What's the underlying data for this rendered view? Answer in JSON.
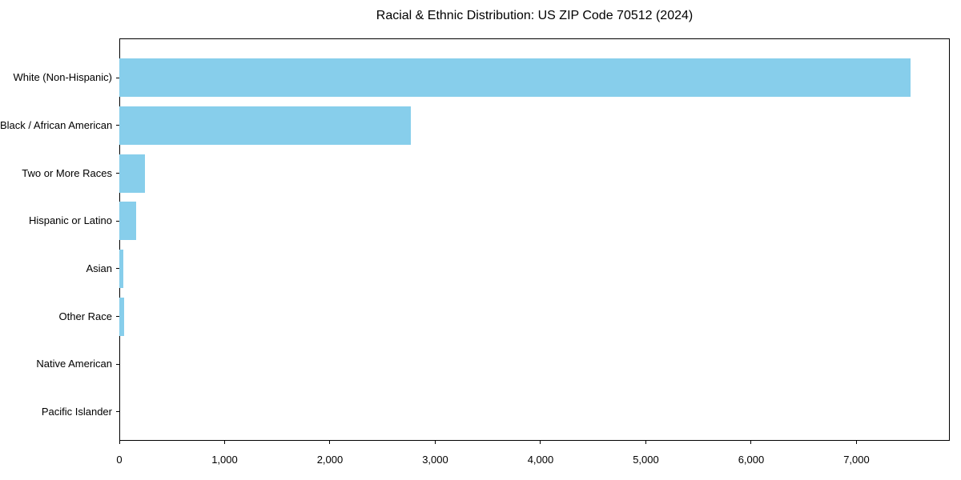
{
  "chart_data": {
    "type": "bar",
    "orientation": "horizontal",
    "title": "Racial & Ethnic Distribution: US ZIP Code 70512 (2024)",
    "categories": [
      "White (Non-Hispanic)",
      "Black / African American",
      "Two or More Races",
      "Hispanic or Latino",
      "Asian",
      "Other Race",
      "Native American",
      "Pacific Islander"
    ],
    "values": [
      7510,
      2765,
      240,
      160,
      35,
      42,
      0,
      0
    ],
    "bar_color": "#87CEEB",
    "xlabel": "",
    "ylabel": "",
    "xlim": [
      0,
      7886
    ],
    "x_ticks": [
      0,
      1000,
      2000,
      3000,
      4000,
      5000,
      6000,
      7000
    ],
    "x_tick_labels": [
      "0",
      "1,000",
      "2,000",
      "3,000",
      "4,000",
      "5,000",
      "6,000",
      "7,000"
    ],
    "grid": false,
    "legend": "none",
    "colors": {
      "bar": "#87CEEB",
      "text": "#000000",
      "spine": "#000000",
      "background": "#ffffff"
    }
  }
}
